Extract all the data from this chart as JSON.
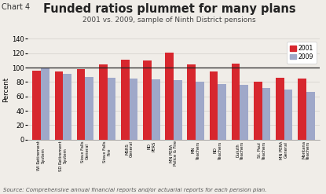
{
  "title": "Funded ratios plummet for many plans",
  "subtitle": "2001 vs. 2009, sample of Ninth District pensions",
  "chart_label": "Chart 4",
  "source": "Source: Comprehensive annual financial reports and/or actuarial reports for each pension plan.",
  "ylabel": "Percent",
  "ylim": [
    0,
    140
  ],
  "yticks": [
    0,
    20,
    40,
    60,
    80,
    100,
    120,
    140
  ],
  "categories": [
    "WI Retirement\nSystem",
    "SD Retirement\nSystem",
    "Sioux Falls\nGeneral",
    "Sioux Falls\nFire",
    "MSRS\nGeneral",
    "ND\nPERS",
    "MN PERA\nPolice & Fire",
    "MN\nTeachers",
    "ND\nTeachers",
    "Duluth\nTeachers",
    "St. Paul\nTeachers",
    "MN PERA\nGeneral",
    "Montana\nTeachers"
  ],
  "values_2001": [
    96,
    95,
    98,
    104,
    111,
    110,
    121,
    105,
    95,
    106,
    81,
    86,
    85
  ],
  "values_2009": [
    99,
    91,
    87,
    86,
    85,
    84,
    83,
    81,
    77,
    76,
    72,
    70,
    66
  ],
  "color_2001": "#d7272e",
  "color_2009": "#9fa8c9",
  "legend_2001": "2001",
  "legend_2009": "2009",
  "bar_width": 0.38,
  "hline_y": 100,
  "background_color": "#f0ede8",
  "plot_bg": "#f0ede8",
  "grid_color": "#d8d5d0",
  "title_fontsize": 10.5,
  "subtitle_fontsize": 6.5,
  "label_fontsize": 7,
  "source_fontsize": 5,
  "ylabel_fontsize": 6,
  "ytick_fontsize": 6,
  "xtick_fontsize": 3.8
}
